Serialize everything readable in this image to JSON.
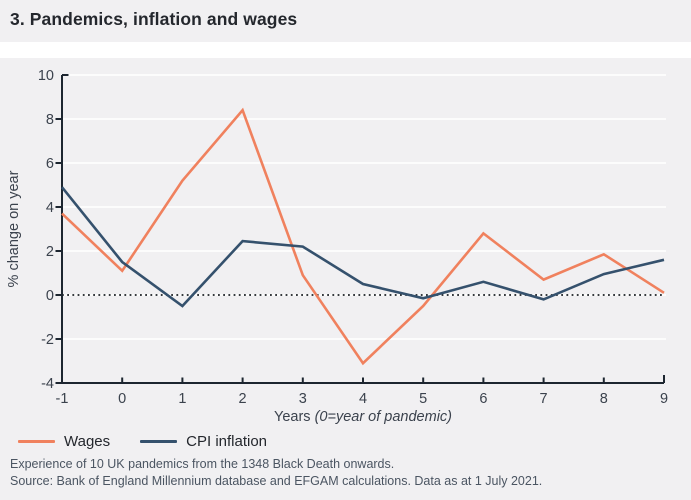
{
  "title": "3. Pandemics, inflation and wages",
  "colors": {
    "panel_bg": "#f1f0f2",
    "grid": "#ffffff",
    "axis": "#1d2630",
    "zero_line": "#1b1f24",
    "tick_text": "#3b424d",
    "title_text": "#24272d",
    "legend_text": "#24272d",
    "footer_text": "#4b5562",
    "wages": "#f0815e",
    "cpi": "#35516d"
  },
  "chart_data": {
    "type": "line",
    "title": "3. Pandemics, inflation and wages",
    "xlabel_main": "Years ",
    "xlabel_italic": "(0=year of pandemic)",
    "ylabel": "% change on year",
    "x": [
      -1,
      0,
      1,
      2,
      3,
      4,
      5,
      6,
      7,
      8,
      9
    ],
    "xlim": [
      -1,
      9
    ],
    "ylim": [
      -4,
      10
    ],
    "ytick_step": 2,
    "grid": true,
    "zero_line_dotted": true,
    "legend_position": "bottom-left",
    "series": [
      {
        "name": "Wages",
        "color": "#f0815e",
        "values": [
          3.7,
          1.1,
          5.2,
          8.4,
          0.9,
          -3.1,
          -0.5,
          2.8,
          0.7,
          1.85,
          0.1
        ]
      },
      {
        "name": "CPI inflation",
        "color": "#35516d",
        "values": [
          4.9,
          1.5,
          -0.5,
          2.45,
          2.2,
          0.5,
          -0.15,
          0.6,
          -0.2,
          0.95,
          1.6
        ]
      }
    ]
  },
  "footnotes": [
    "Experience of 10 UK pandemics from the 1348 Black Death onwards.",
    "Source: Bank of England Millennium database and EFGAM calculations. Data as at 1 July 2021."
  ]
}
